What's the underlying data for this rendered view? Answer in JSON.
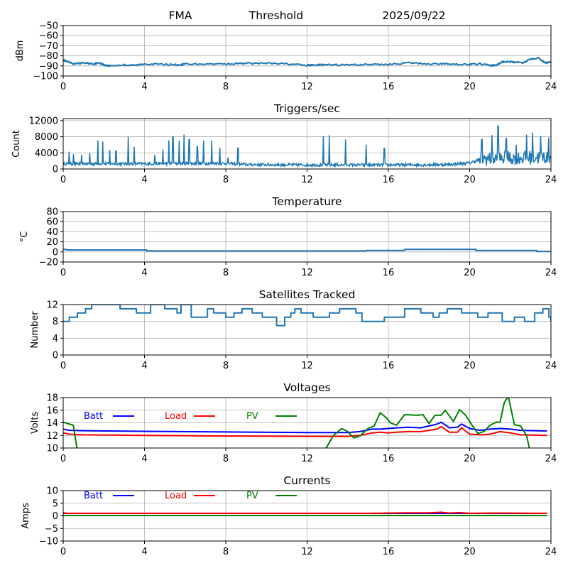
{
  "header": {
    "left": "FMA",
    "center": "Threshold",
    "right": "2025/09/22"
  },
  "colors": {
    "series_default": "#1f77b4",
    "batt": "#0000ff",
    "load": "#ff0000",
    "pv": "#008000",
    "grid": "#b0b0b0"
  },
  "chart_data": [
    {
      "id": "threshold",
      "type": "line",
      "title": "",
      "xlabel": "",
      "ylabel": "dBm",
      "xlim": [
        0,
        24
      ],
      "ylim": [
        -100,
        -50
      ],
      "xticks": [
        0,
        4,
        8,
        12,
        16,
        20,
        24
      ],
      "yticks": [
        -100,
        -90,
        -80,
        -70,
        -60,
        -50
      ],
      "ytick_labels": [
        "−100",
        "−90",
        "−80",
        "−70",
        "−60",
        "−50"
      ],
      "grid": true,
      "series": [
        {
          "name": "threshold",
          "color": "#1f77b4",
          "x": [
            0,
            0.2,
            0.5,
            1,
            1.5,
            1.8,
            2,
            2.3,
            3,
            3.5,
            4,
            5,
            5.8,
            6,
            7,
            8,
            9,
            10,
            11,
            12,
            12.5,
            13,
            14,
            15,
            16,
            17,
            18,
            19,
            20,
            20.5,
            21,
            21.3,
            21.6,
            22,
            22.6,
            23,
            23.4,
            23.7,
            24
          ],
          "y": [
            -84,
            -86,
            -88,
            -87,
            -88,
            -87,
            -89,
            -90,
            -89,
            -89.5,
            -88,
            -88.5,
            -89,
            -88,
            -88,
            -88,
            -87.5,
            -87.5,
            -88,
            -89.5,
            -89,
            -89,
            -89,
            -88.5,
            -88.5,
            -87,
            -88,
            -88,
            -88.5,
            -88,
            -89.5,
            -89.5,
            -86,
            -86,
            -87,
            -83,
            -82,
            -87,
            -86
          ]
        }
      ]
    },
    {
      "id": "triggers",
      "type": "line",
      "title": "Triggers/sec",
      "xlabel": "",
      "ylabel": "Count",
      "xlim": [
        0,
        24
      ],
      "ylim": [
        0,
        12500
      ],
      "xticks": [
        0,
        4,
        8,
        12,
        16,
        20,
        24
      ],
      "yticks": [
        0,
        4000,
        8000,
        12000
      ],
      "ytick_labels": [
        "0",
        "4000",
        "8000",
        "12000"
      ],
      "grid": true,
      "baseline": [
        [
          0,
          1300
        ],
        [
          4,
          1300
        ],
        [
          8,
          1400
        ],
        [
          9,
          1100
        ],
        [
          12,
          1000
        ],
        [
          16,
          1000
        ],
        [
          19,
          1100
        ],
        [
          20,
          1500
        ],
        [
          20.6,
          2500
        ],
        [
          24,
          3000
        ]
      ],
      "spikes": [
        [
          0.3,
          4300
        ],
        [
          0.5,
          3700
        ],
        [
          0.9,
          3500
        ],
        [
          1.3,
          4000
        ],
        [
          1.7,
          7100
        ],
        [
          1.95,
          6800
        ],
        [
          2.3,
          4700
        ],
        [
          2.6,
          4500
        ],
        [
          3.2,
          8000
        ],
        [
          3.5,
          5500
        ],
        [
          4.5,
          3500
        ],
        [
          4.9,
          4800
        ],
        [
          5.2,
          7100
        ],
        [
          5.4,
          8000
        ],
        [
          5.7,
          7000
        ],
        [
          5.95,
          8500
        ],
        [
          6.2,
          7300
        ],
        [
          6.6,
          5500
        ],
        [
          6.9,
          7000
        ],
        [
          7.3,
          7000
        ],
        [
          7.7,
          5300
        ],
        [
          8.1,
          2800
        ],
        [
          8.6,
          5200
        ],
        [
          12.8,
          8100
        ],
        [
          13.1,
          8400
        ],
        [
          13.9,
          7300
        ],
        [
          14.9,
          6000
        ],
        [
          15.8,
          5100
        ],
        [
          20.6,
          7300
        ],
        [
          21.1,
          8400
        ],
        [
          21.4,
          10700
        ],
        [
          21.8,
          7600
        ],
        [
          22.3,
          6000
        ],
        [
          22.8,
          8500
        ],
        [
          23.1,
          9000
        ],
        [
          23.5,
          8200
        ],
        [
          23.9,
          7800
        ]
      ],
      "series": [
        {
          "name": "triggers",
          "color": "#1f77b4"
        }
      ]
    },
    {
      "id": "temperature",
      "type": "line",
      "title": "Temperature",
      "xlabel": "",
      "ylabel": "°C",
      "xlim": [
        0,
        24
      ],
      "ylim": [
        -20,
        80
      ],
      "xticks": [
        0,
        4,
        8,
        12,
        16,
        20,
        24
      ],
      "yticks": [
        -20,
        0,
        20,
        40,
        60,
        80
      ],
      "ytick_labels": [
        "−20",
        "0",
        "20",
        "40",
        "60",
        "80"
      ],
      "grid": true,
      "series": [
        {
          "name": "temperature",
          "color": "#1f77b4",
          "step": true,
          "x": [
            0,
            0.15,
            4.1,
            14.9,
            16.8,
            20.3,
            23.3,
            24
          ],
          "y": [
            5,
            4,
            2,
            3,
            5,
            3,
            1,
            1
          ]
        }
      ]
    },
    {
      "id": "satellites",
      "type": "line",
      "title": "Satellites Tracked",
      "xlabel": "",
      "ylabel": "Number",
      "xlim": [
        0,
        24
      ],
      "ylim": [
        0,
        12
      ],
      "xticks": [
        0,
        4,
        8,
        12,
        16,
        20,
        24
      ],
      "yticks": [
        0,
        4,
        8,
        12
      ],
      "ytick_labels": [
        "0",
        "4",
        "8",
        "12"
      ],
      "grid": true,
      "series": [
        {
          "name": "satellites",
          "color": "#1f77b4",
          "step": true,
          "x": [
            0,
            0.3,
            0.7,
            1.1,
            1.4,
            2.6,
            2.8,
            3.4,
            3.6,
            4.3,
            4.8,
            5,
            5.6,
            5.8,
            6.3,
            7.1,
            7.4,
            8,
            8.4,
            8.8,
            9.3,
            9.8,
            10.1,
            10.5,
            10.9,
            11.2,
            11.4,
            11.7,
            12,
            12.3,
            13.1,
            13.6,
            14.4,
            14.7,
            15.8,
            16,
            16.8,
            17.1,
            17.6,
            18.2,
            18.5,
            18.9,
            19.6,
            20.4,
            20.9,
            21.6,
            22.2,
            22.7,
            23.2,
            23.6,
            23.9,
            24
          ],
          "y": [
            8,
            9,
            10,
            11,
            12,
            12,
            11,
            11,
            10,
            12,
            12,
            11,
            10,
            12,
            9,
            11,
            10,
            9,
            10,
            11,
            10,
            9,
            9,
            7,
            9,
            10,
            11,
            10,
            10,
            9,
            10,
            11,
            10,
            8,
            9,
            9,
            11,
            11,
            10,
            9,
            10,
            11,
            10,
            9,
            10,
            8,
            9,
            8,
            10,
            11,
            9,
            8
          ]
        }
      ]
    },
    {
      "id": "voltages",
      "type": "line",
      "title": "Voltages",
      "xlabel": "",
      "ylabel": "Volts",
      "xlim": [
        0,
        24
      ],
      "ylim": [
        10,
        18
      ],
      "xticks": [
        0,
        4,
        8,
        12,
        16,
        20,
        24
      ],
      "yticks": [
        10,
        12,
        14,
        16,
        18
      ],
      "ytick_labels": [
        "10",
        "12",
        "14",
        "16",
        "18"
      ],
      "grid": true,
      "legend": {
        "placement": "top-left",
        "entries": [
          "Batt",
          "Load",
          "PV"
        ]
      },
      "series": [
        {
          "name": "Batt",
          "color": "#0000ff",
          "x": [
            0,
            0.3,
            1,
            4,
            8,
            12,
            14,
            14.6,
            15.2,
            15.6,
            16,
            16.4,
            17,
            17.6,
            18,
            18.4,
            18.6,
            19,
            19.4,
            19.6,
            20,
            20.5,
            21,
            21.5,
            22,
            22.5,
            23.8
          ],
          "y": [
            13.0,
            12.8,
            12.75,
            12.65,
            12.55,
            12.45,
            12.45,
            12.6,
            13.0,
            13.0,
            13.1,
            13.2,
            13.3,
            13.2,
            13.5,
            13.8,
            14.1,
            13.2,
            13.3,
            13.8,
            13.1,
            12.8,
            13.0,
            13.1,
            13.0,
            12.8,
            12.7
          ]
        },
        {
          "name": "Load",
          "color": "#ff0000",
          "x": [
            0,
            0.3,
            1,
            4,
            8,
            12,
            14,
            14.6,
            15.2,
            15.6,
            16,
            16.4,
            17,
            17.6,
            18,
            18.4,
            18.6,
            19,
            19.4,
            19.6,
            20,
            20.5,
            21,
            21.5,
            22,
            22.5,
            23.8
          ],
          "y": [
            12.4,
            12.2,
            12.1,
            12.0,
            11.9,
            11.85,
            11.85,
            12.0,
            12.4,
            12.5,
            12.4,
            12.5,
            12.6,
            12.6,
            12.8,
            13.0,
            13.4,
            12.5,
            12.5,
            13.2,
            12.2,
            12.1,
            12.2,
            12.6,
            12.4,
            12.1,
            12.0
          ]
        },
        {
          "name": "PV",
          "color": "#008000",
          "x": [
            0,
            0.5,
            0.7,
            12.9,
            13.3,
            13.7,
            14.0,
            14.3,
            14.6,
            15.0,
            15.3,
            15.6,
            15.9,
            16.1,
            16.4,
            16.8,
            17.4,
            17.7,
            18.0,
            18.3,
            18.6,
            18.8,
            19.2,
            19.5,
            19.8,
            20.1,
            20.4,
            20.7,
            21.0,
            21.3,
            21.5,
            21.7,
            21.9,
            22.2,
            22.5,
            22.8,
            23.0
          ],
          "y": [
            14.1,
            13.6,
            9.5,
            9.8,
            12.0,
            13.1,
            12.6,
            11.6,
            11.9,
            13.1,
            13.5,
            15.6,
            14.8,
            14.0,
            13.6,
            15.3,
            15.2,
            15.3,
            13.9,
            15.2,
            15.2,
            16.0,
            14.2,
            16.1,
            15.2,
            13.7,
            12.3,
            12.6,
            13.6,
            14.1,
            14.1,
            17.2,
            18.2,
            13.7,
            13.5,
            12.0,
            9.0
          ]
        }
      ]
    },
    {
      "id": "currents",
      "type": "line",
      "title": "Currents",
      "xlabel": "",
      "ylabel": "Amps",
      "xlim": [
        0,
        24
      ],
      "ylim": [
        -10,
        10
      ],
      "xticks": [
        0,
        4,
        8,
        12,
        16,
        20,
        24
      ],
      "yticks": [
        -10,
        -5,
        0,
        5,
        10
      ],
      "ytick_labels": [
        "−10",
        "−5",
        "0",
        "5",
        "10"
      ],
      "grid": true,
      "legend": {
        "placement": "top-left",
        "entries": [
          "Batt",
          "Load",
          "PV"
        ]
      },
      "series": [
        {
          "name": "Batt",
          "color": "#0000ff",
          "x": [
            0,
            23.8
          ],
          "y": [
            1.0,
            1.0
          ]
        },
        {
          "name": "Load",
          "color": "#ff0000",
          "x": [
            0,
            0.2,
            4,
            8,
            12,
            15,
            16,
            17,
            18,
            18.6,
            19,
            19.5,
            20,
            21,
            22,
            23.8
          ],
          "y": [
            1.2,
            1.0,
            1.0,
            1.0,
            1.0,
            1.0,
            1.1,
            1.2,
            1.2,
            1.4,
            1.1,
            1.3,
            1.0,
            1.1,
            1.1,
            1.0
          ]
        },
        {
          "name": "PV",
          "color": "#008000",
          "x": [
            0,
            23.8
          ],
          "y": [
            0.1,
            0.1
          ]
        }
      ]
    }
  ]
}
